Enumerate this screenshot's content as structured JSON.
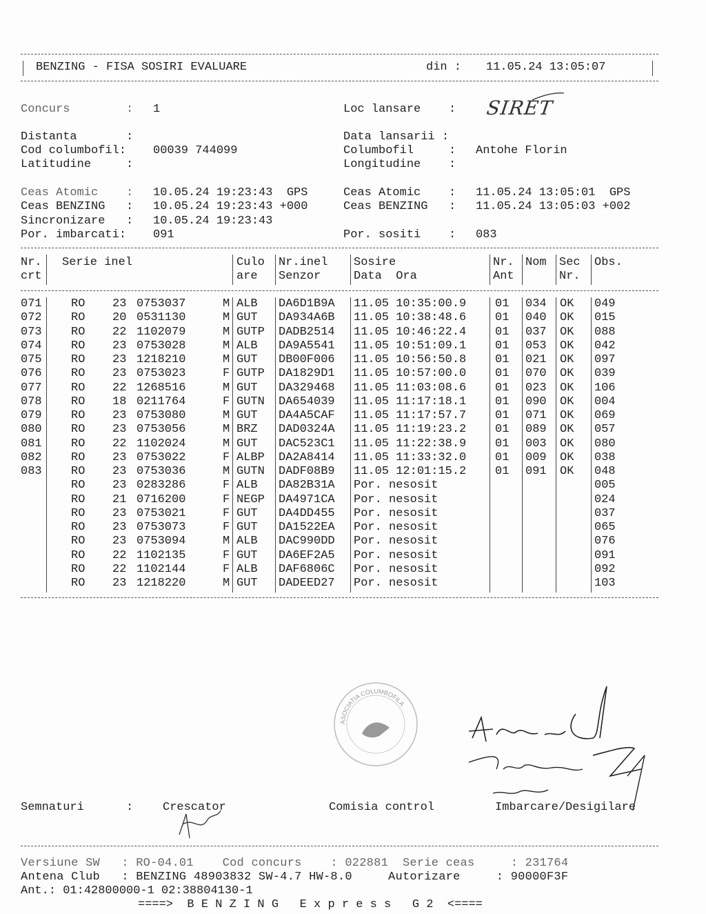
{
  "header": {
    "title": "BENZING - FISA SOSIRI EVALUARE",
    "din_label": "din :",
    "din_value": "11.05.24 13:05:07"
  },
  "info": {
    "concurs_label": "Concurs        :",
    "concurs": "1",
    "loc_label": "Loc lansare    :",
    "loc_handwritten": "SIRET",
    "distanta_label": "Distanta       :",
    "distanta": "",
    "data_lansarii_label": "Data lansarii :",
    "data_lansarii": "",
    "cod_label": "Cod columbofil:",
    "cod": "00039 744099",
    "columbofil_label": "Columbofil     :",
    "columbofil": "Antohe Florin",
    "lat_label": "Latitudine     :",
    "lat": "",
    "long_label": "Longitudine    :",
    "long": "",
    "ceas_atomic_label": "Ceas Atomic    :",
    "ceas_atomic_1": "10.05.24 19:23:43  GPS",
    "ceas_atomic_2": "11.05.24 13:05:01  GPS",
    "ceas_benzing_label": "Ceas BENZING   :",
    "ceas_benzing_1": "10.05.24 19:23:43 +000",
    "ceas_benzing_2": "11.05.24 13:05:03 +002",
    "sinc_label": "Sincronizare   :",
    "sinc": "10.05.24 19:23:43",
    "imb_label": "Por. imbarcati:",
    "imb": "091",
    "sositi_label": "Por. sositi    :",
    "sositi": "083"
  },
  "table": {
    "headers": [
      [
        "Nr.",
        "crt"
      ],
      [
        "Serie inel",
        ""
      ],
      [
        "Culo",
        "are"
      ],
      [
        "Nr.inel",
        "Senzor"
      ],
      [
        "Sosire",
        "Data  Ora"
      ],
      [
        "Nr.",
        "Ant"
      ],
      [
        "Nom",
        ""
      ],
      [
        "Sec",
        "Nr."
      ],
      [
        "Obs.",
        ""
      ]
    ],
    "rows": [
      [
        "071",
        "RO",
        "23",
        "0753037",
        "M",
        "ALB",
        "DA6D1B9A",
        "11.05 10:35:00.9",
        "01",
        "034",
        "OK",
        "049"
      ],
      [
        "072",
        "RO",
        "20",
        "0531130",
        "M",
        "GUT",
        "DA934A6B",
        "11.05 10:38:48.6",
        "01",
        "040",
        "OK",
        "015"
      ],
      [
        "073",
        "RO",
        "22",
        "1102079",
        "M",
        "GUTP",
        "DADB2514",
        "11.05 10:46:22.4",
        "01",
        "037",
        "OK",
        "088"
      ],
      [
        "074",
        "RO",
        "23",
        "0753028",
        "M",
        "ALB",
        "DA9A5541",
        "11.05 10:51:09.1",
        "01",
        "053",
        "OK",
        "042"
      ],
      [
        "075",
        "RO",
        "23",
        "1218210",
        "M",
        "GUT",
        "DB00F006",
        "11.05 10:56:50.8",
        "01",
        "021",
        "OK",
        "097"
      ],
      [
        "076",
        "RO",
        "23",
        "0753023",
        "F",
        "GUTP",
        "DA1829D1",
        "11.05 10:57:00.0",
        "01",
        "070",
        "OK",
        "039"
      ],
      [
        "077",
        "RO",
        "22",
        "1268516",
        "M",
        "GUT",
        "DA329468",
        "11.05 11:03:08.6",
        "01",
        "023",
        "OK",
        "106"
      ],
      [
        "078",
        "RO",
        "18",
        "0211764",
        "F",
        "GUTN",
        "DA654039",
        "11.05 11:17:18.1",
        "01",
        "090",
        "OK",
        "004"
      ],
      [
        "079",
        "RO",
        "23",
        "0753080",
        "M",
        "GUT",
        "DA4A5CAF",
        "11.05 11:17:57.7",
        "01",
        "071",
        "OK",
        "069"
      ],
      [
        "080",
        "RO",
        "23",
        "0753056",
        "M",
        "BRZ",
        "DAD0324A",
        "11.05 11:19:23.2",
        "01",
        "089",
        "OK",
        "057"
      ],
      [
        "081",
        "RO",
        "22",
        "1102024",
        "M",
        "GUT",
        "DAC523C1",
        "11.05 11:22:38.9",
        "01",
        "003",
        "OK",
        "080"
      ],
      [
        "082",
        "RO",
        "23",
        "0753022",
        "F",
        "ALBP",
        "DA2A8414",
        "11.05 11:33:32.0",
        "01",
        "009",
        "OK",
        "038"
      ],
      [
        "083",
        "RO",
        "23",
        "0753036",
        "M",
        "GUTN",
        "DADF08B9",
        "11.05 12:01:15.2",
        "01",
        "091",
        "OK",
        "048"
      ],
      [
        "",
        "RO",
        "23",
        "0283286",
        "F",
        "ALB",
        "DA82B31A",
        "Por. nesosit",
        "",
        "",
        "",
        "005"
      ],
      [
        "",
        "RO",
        "21",
        "0716200",
        "F",
        "NEGP",
        "DA4971CA",
        "Por. nesosit",
        "",
        "",
        "",
        "024"
      ],
      [
        "",
        "RO",
        "23",
        "0753021",
        "F",
        "GUT",
        "DA4DD455",
        "Por. nesosit",
        "",
        "",
        "",
        "037"
      ],
      [
        "",
        "RO",
        "23",
        "0753073",
        "F",
        "GUT",
        "DA1522EA",
        "Por. nesosit",
        "",
        "",
        "",
        "065"
      ],
      [
        "",
        "RO",
        "23",
        "0753094",
        "M",
        "ALB",
        "DAC990DD",
        "Por. nesosit",
        "",
        "",
        "",
        "076"
      ],
      [
        "",
        "RO",
        "22",
        "1102135",
        "F",
        "GUT",
        "DA6EF2A5",
        "Por. nesosit",
        "",
        "",
        "",
        "091"
      ],
      [
        "",
        "RO",
        "22",
        "1102144",
        "F",
        "ALB",
        "DAF6806C",
        "Por. nesosit",
        "",
        "",
        "",
        "092"
      ],
      [
        "",
        "RO",
        "23",
        "1218220",
        "M",
        "GUT",
        "DADEED27",
        "Por. nesosit",
        "",
        "",
        "",
        "103"
      ]
    ]
  },
  "stamp": {
    "text": "ASOCIATIA COLUMBOFILA"
  },
  "signatures": {
    "label": "Semnaturi      :",
    "crescator": "Crescator",
    "comisia": "Comisia control",
    "imbarcare": "Imbarcare/Desigilare"
  },
  "footer": {
    "versiune": "Versiune SW   : RO-04.01    Cod concurs    : 022881  Serie ceas     : 231764",
    "antena": "Antena Club   : BENZING 48903832 SW-4.7 HW-8.0     Autorizare     : 90000F3F",
    "ant": "Ant.: 01:42800000-1 02:38804130-1",
    "brand": "====>  B E N Z I N G   E x p r e s s   G 2  <===="
  }
}
